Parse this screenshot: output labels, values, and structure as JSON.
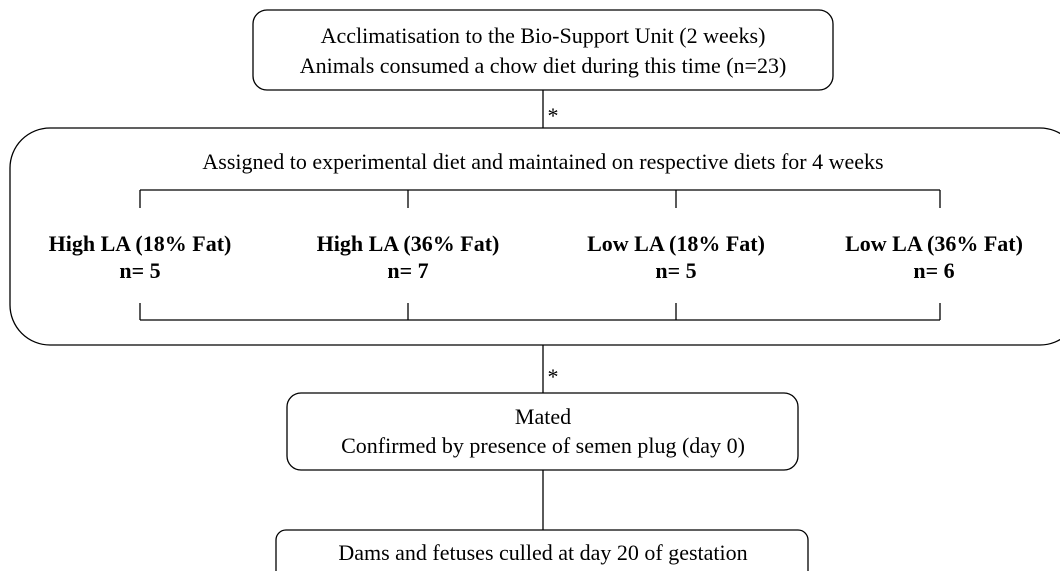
{
  "top_box": {
    "lines": [
      "Acclimatisation to the Bio-Support Unit (2 weeks)",
      "Animals consumed a chow diet during this time (n=23)"
    ]
  },
  "connectors": [
    "*",
    "*"
  ],
  "diet_box": {
    "title": "Assigned to experimental diet and maintained on respective diets for 4 weeks",
    "groups": [
      {
        "name": "High LA (18% Fat)",
        "n": "n= 5"
      },
      {
        "name": "High LA (36% Fat)",
        "n": "n= 7"
      },
      {
        "name": "Low LA (18% Fat)",
        "n": "n= 5"
      },
      {
        "name": "Low LA (36% Fat)",
        "n": "n= 6"
      }
    ]
  },
  "mated_box": {
    "lines": [
      "Mated",
      "Confirmed by presence of semen plug (day 0)"
    ]
  },
  "final_box": {
    "text": "Dams and fetuses culled at day 20 of gestation"
  }
}
